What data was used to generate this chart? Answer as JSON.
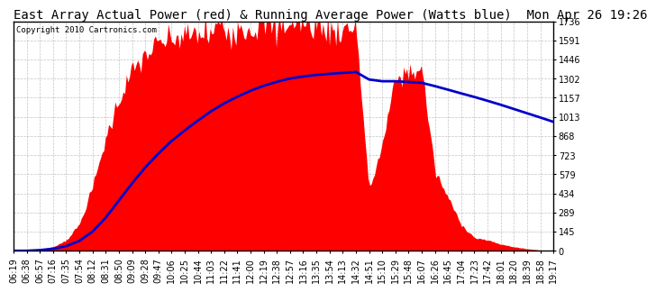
{
  "title": "East Array Actual Power (red) & Running Average Power (Watts blue)  Mon Apr 26 19:26",
  "copyright": "Copyright 2010 Cartronics.com",
  "ymax": 1735.8,
  "ymin": 0.0,
  "yticks": [
    0.0,
    144.7,
    289.3,
    434.0,
    578.6,
    723.3,
    867.9,
    1012.6,
    1157.2,
    1301.9,
    1446.5,
    1591.2,
    1735.8
  ],
  "xtick_labels": [
    "06:19",
    "06:38",
    "06:57",
    "07:16",
    "07:35",
    "07:54",
    "08:12",
    "08:31",
    "08:50",
    "09:09",
    "09:28",
    "09:47",
    "10:06",
    "10:25",
    "10:44",
    "11:03",
    "11:22",
    "11:41",
    "12:00",
    "12:19",
    "12:38",
    "12:57",
    "13:16",
    "13:35",
    "13:54",
    "14:13",
    "14:32",
    "14:51",
    "15:10",
    "15:29",
    "15:48",
    "16:07",
    "16:26",
    "16:45",
    "17:04",
    "17:23",
    "17:42",
    "18:01",
    "18:20",
    "18:39",
    "18:58",
    "19:17"
  ],
  "background_color": "#ffffff",
  "plot_bg_color": "#ffffff",
  "grid_color": "#aaaaaa",
  "red_color": "#ff0000",
  "blue_color": "#0000cc",
  "title_fontsize": 10,
  "tick_fontsize": 7,
  "actual_power": [
    0,
    0,
    10,
    30,
    80,
    200,
    480,
    850,
    1150,
    1350,
    1480,
    1560,
    1600,
    1620,
    1640,
    1660,
    1680,
    1690,
    1695,
    1700,
    1705,
    1720,
    1710,
    1700,
    1680,
    1690,
    1700,
    450,
    800,
    1300,
    1350,
    1380,
    600,
    400,
    200,
    100,
    80,
    50,
    30,
    15,
    5,
    0
  ],
  "avg_power": [
    0,
    0,
    5,
    15,
    35,
    75,
    145,
    250,
    380,
    510,
    630,
    735,
    830,
    910,
    985,
    1055,
    1115,
    1165,
    1210,
    1248,
    1278,
    1303,
    1318,
    1330,
    1338,
    1345,
    1352,
    1295,
    1282,
    1282,
    1276,
    1270,
    1245,
    1218,
    1190,
    1163,
    1134,
    1104,
    1072,
    1040,
    1008,
    975
  ]
}
